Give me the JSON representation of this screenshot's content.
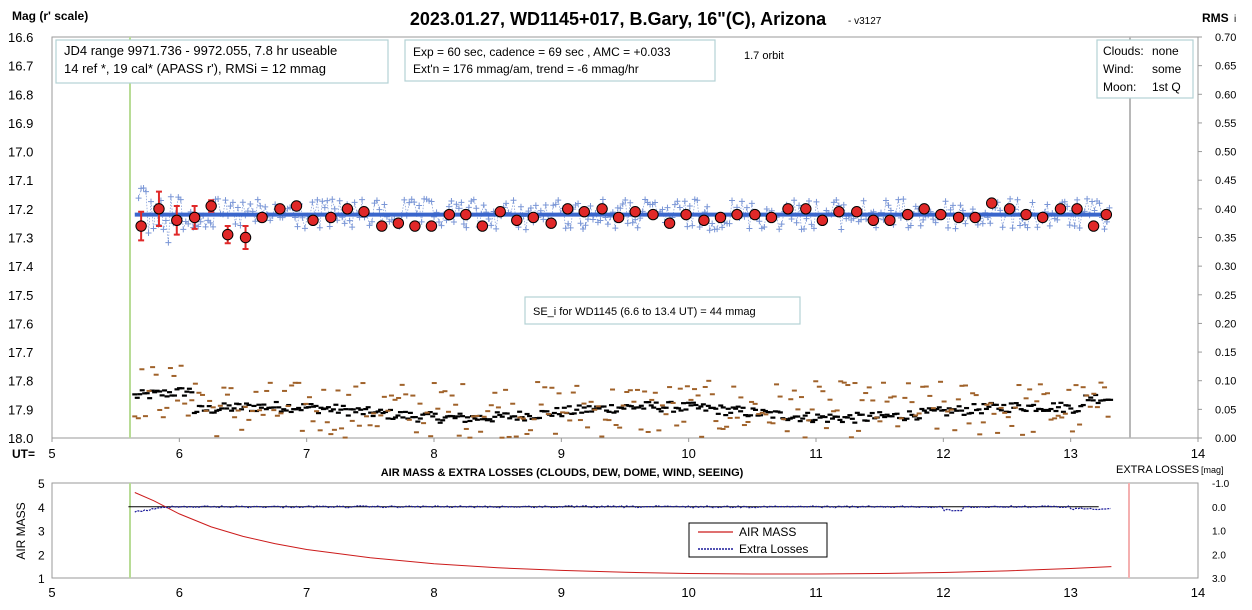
{
  "title_main": "2023.01.27, WD1145+017, B.Gary, 16\"(C), Arizona",
  "title_version": "- v3127",
  "top_chart": {
    "ylabel_left": "Mag (r' scale)",
    "ylabel_right_main": "RMS",
    "ylabel_right_sub": "i",
    "xlabel": "UT=",
    "y_ticks_left": [
      "16.6",
      "16.7",
      "16.8",
      "16.9",
      "17.0",
      "17.1",
      "17.2",
      "17.3",
      "17.4",
      "17.5",
      "17.6",
      "17.7",
      "17.8",
      "17.9",
      "18.0"
    ],
    "y_ticks_right": [
      "0.70",
      "0.65",
      "0.60",
      "0.55",
      "0.50",
      "0.45",
      "0.40",
      "0.35",
      "0.30",
      "0.25",
      "0.20",
      "0.15",
      "0.10",
      "0.05",
      "0.00"
    ],
    "x_ticks": [
      "5",
      "6",
      "7",
      "8",
      "9",
      "10",
      "11",
      "12",
      "13",
      "14"
    ]
  },
  "bottom_chart": {
    "title": "AIR MASS & EXTRA LOSSES (CLOUDS, DEW, DOME, WIND, SEEING)",
    "ylabel_left": "AIR MASS",
    "right_label_main": "EXTRA LOSSES",
    "right_label_unit": "[mag]",
    "y_ticks_left": [
      "5",
      "4",
      "3",
      "2",
      "1"
    ],
    "y_ticks_right": [
      "-1.0",
      "0.0",
      "1.0",
      "2.0",
      "3.0"
    ],
    "x_ticks": [
      "5",
      "6",
      "7",
      "8",
      "9",
      "10",
      "11",
      "12",
      "13",
      "14"
    ],
    "legend": [
      "AIR MASS",
      "Extra Losses"
    ]
  },
  "annotations": {
    "box1_line1": "JD4 range 9971.736 - 9972.055, 7.8 hr useable",
    "box1_line2": "14 ref *, 19 cal*  (APASS r'), RMSi = 12 mmag",
    "box2_line1": "Exp = 60 sec, cadence = 69 sec , AMC = +0.033",
    "box2_line2": "Ext'n = 176 mmag/am, trend = -6 mmag/hr",
    "orbit": "1.7 orbit",
    "box3_clouds_label": "Clouds:",
    "box3_clouds_value": "none",
    "box3_wind_label": "Wind:",
    "box3_wind_value": "some",
    "box3_moon_label": "Moon:",
    "box3_moon_value": "1st Q",
    "se_box": "SE_i for WD1145 (6.6 to 13.4 UT) = 44 mmag"
  },
  "colors": {
    "fit_line": "#3a66cc",
    "raw_points": "#7a96d6",
    "binned_fill": "#e02828",
    "rms_black": "#000000",
    "rms_brown": "#a0622a",
    "air_mass": "#cc1b1b",
    "extra_losses": "#1a1a9a",
    "start_marker": "#b8dc96",
    "end_marker_top": "#b8b8b8",
    "end_marker_bottom": "#f4b0b0"
  },
  "chart_data": [
    {
      "type": "scatter",
      "name": "light curve",
      "xlim": [
        5,
        14
      ],
      "ylim": [
        18.0,
        16.6
      ],
      "y2lim": [
        0.0,
        0.7
      ],
      "ut_start": 5.6,
      "ut_end": 13.42,
      "fit_level": 17.22,
      "binned": {
        "x": [
          5.7,
          5.84,
          5.98,
          6.12,
          6.25,
          6.38,
          6.52,
          6.65,
          6.79,
          6.92,
          7.05,
          7.19,
          7.32,
          7.45,
          7.59,
          7.72,
          7.85,
          7.98,
          8.12,
          8.25,
          8.38,
          8.52,
          8.65,
          8.78,
          8.92,
          9.05,
          9.18,
          9.32,
          9.45,
          9.58,
          9.72,
          9.85,
          9.98,
          10.12,
          10.25,
          10.38,
          10.52,
          10.65,
          10.78,
          10.92,
          11.05,
          11.18,
          11.32,
          11.45,
          11.58,
          11.72,
          11.85,
          11.98,
          12.12,
          12.25,
          12.38,
          12.52,
          12.65,
          12.78,
          12.92,
          13.05,
          13.18,
          13.28
        ],
        "y": [
          17.26,
          17.2,
          17.24,
          17.23,
          17.19,
          17.29,
          17.3,
          17.23,
          17.2,
          17.19,
          17.24,
          17.23,
          17.2,
          17.21,
          17.26,
          17.25,
          17.26,
          17.26,
          17.22,
          17.22,
          17.26,
          17.21,
          17.24,
          17.23,
          17.25,
          17.2,
          17.21,
          17.2,
          17.23,
          17.21,
          17.22,
          17.25,
          17.22,
          17.24,
          17.23,
          17.22,
          17.22,
          17.23,
          17.2,
          17.2,
          17.24,
          17.21,
          17.21,
          17.24,
          17.24,
          17.22,
          17.2,
          17.22,
          17.23,
          17.23,
          17.18,
          17.2,
          17.22,
          17.23,
          17.2,
          17.2,
          17.26,
          17.22
        ],
        "err": [
          0.05,
          0.06,
          0.05,
          0.04,
          0.02,
          0.03,
          0.04,
          0,
          0,
          0,
          0,
          0,
          0,
          0,
          0,
          0,
          0,
          0,
          0,
          0,
          0,
          0,
          0,
          0,
          0,
          0,
          0,
          0,
          0,
          0,
          0,
          0,
          0,
          0,
          0,
          0,
          0,
          0,
          0,
          0,
          0,
          0,
          0,
          0,
          0,
          0,
          0,
          0,
          0,
          0,
          0,
          0,
          0,
          0,
          0,
          0,
          0,
          0
        ]
      }
    },
    {
      "type": "line",
      "name": "air mass / extra losses",
      "xlim": [
        5,
        14
      ],
      "ylim": [
        1,
        5
      ],
      "y2lim": [
        -1.0,
        3.0
      ],
      "air_mass": {
        "x": [
          5.65,
          5.8,
          6.0,
          6.25,
          6.5,
          6.75,
          7.0,
          7.5,
          8.0,
          8.5,
          9.0,
          9.5,
          10.0,
          10.5,
          11.0,
          11.5,
          12.0,
          12.5,
          13.0,
          13.32
        ],
        "y": [
          4.6,
          4.25,
          3.7,
          3.15,
          2.75,
          2.45,
          2.2,
          1.85,
          1.6,
          1.43,
          1.32,
          1.24,
          1.19,
          1.17,
          1.17,
          1.19,
          1.23,
          1.3,
          1.4,
          1.48
        ]
      },
      "extra_losses_baseline": 0.0
    }
  ]
}
